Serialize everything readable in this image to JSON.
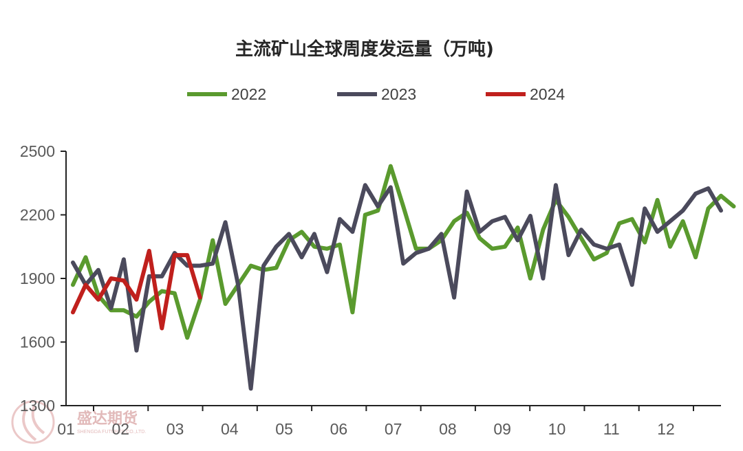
{
  "chart_data": {
    "type": "line",
    "title": "主流矿山全球周度发运量（万吨)",
    "xlabel": "",
    "ylabel": "",
    "ylim": [
      1300,
      2500
    ],
    "yticks": [
      1300,
      1600,
      1900,
      2200,
      2500
    ],
    "x_tick_labels": [
      "01",
      "02",
      "03",
      "04",
      "05",
      "06",
      "07",
      "08",
      "09",
      "10",
      "11",
      "12"
    ],
    "legend_position": "top-center",
    "grid": false,
    "series": [
      {
        "name": "2022",
        "color": "#5a9a2e",
        "values": [
          1870,
          2000,
          1820,
          1750,
          1750,
          1720,
          1790,
          1840,
          1830,
          1620,
          1800,
          2080,
          1780,
          1870,
          1960,
          1940,
          1950,
          2080,
          2120,
          2050,
          2040,
          2060,
          1740,
          2200,
          2220,
          2430,
          2240,
          2040,
          2040,
          2080,
          2170,
          2210,
          2090,
          2040,
          2050,
          2140,
          1900,
          2130,
          2270,
          2190,
          2090,
          1990,
          2020,
          2160,
          2180,
          2070,
          2270,
          2050,
          2170,
          2000,
          2230,
          2290,
          2240
        ]
      },
      {
        "name": "2023",
        "color": "#4b4a5c",
        "values": [
          1975,
          1870,
          1940,
          1760,
          1990,
          1560,
          1910,
          1910,
          2020,
          1960,
          1960,
          1970,
          2165,
          1870,
          1380,
          1960,
          2050,
          2110,
          2000,
          2110,
          1930,
          2180,
          2120,
          2340,
          2240,
          2330,
          1970,
          2020,
          2040,
          2110,
          1810,
          2310,
          2120,
          2170,
          2190,
          2080,
          2195,
          1900,
          2340,
          2010,
          2130,
          2060,
          2040,
          2060,
          1870,
          2230,
          2120,
          2170,
          2220,
          2300,
          2325,
          2220
        ]
      },
      {
        "name": "2024",
        "color": "#c0201d",
        "values": [
          1740,
          1870,
          1800,
          1900,
          1890,
          1800,
          2030,
          1665,
          2010,
          2010,
          1810
        ]
      }
    ]
  },
  "watermark": {
    "brand": "盛达期货",
    "sub": "SHENGDA FUTURES CO.,LTD."
  }
}
